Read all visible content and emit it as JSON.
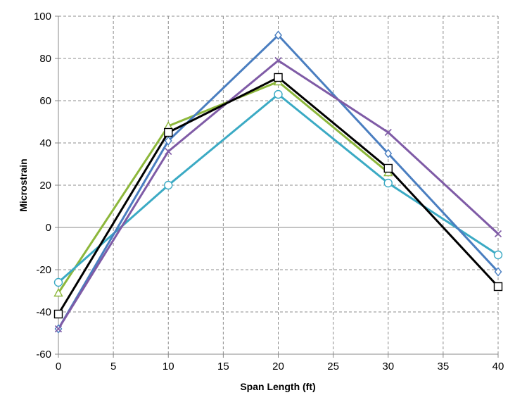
{
  "chart_data": {
    "type": "line",
    "xlabel": "Span Length (ft)",
    "ylabel": "Microstrain",
    "xlim": [
      0,
      40
    ],
    "ylim": [
      -60,
      100
    ],
    "x_ticks": [
      0,
      5,
      10,
      15,
      20,
      25,
      30,
      35,
      40
    ],
    "y_ticks": [
      -60,
      -40,
      -20,
      0,
      20,
      40,
      60,
      80,
      100
    ],
    "x_tick_labels": [
      "0",
      "5",
      "10",
      "15",
      "20",
      "25",
      "30",
      "35",
      "40"
    ],
    "y_tick_labels": [
      "-60",
      "-40",
      "-20",
      "0",
      "20",
      "40",
      "60",
      "80",
      "100"
    ],
    "grid": true,
    "legend": "none",
    "x": [
      0,
      10,
      20,
      30,
      40
    ],
    "series": [
      {
        "values": [
          -31,
          48,
          69,
          26,
          null
        ],
        "color": "#8DB73B",
        "marker": "triangle"
      },
      {
        "values": [
          -26,
          20,
          63,
          21,
          -13
        ],
        "color": "#3BAAC4",
        "marker": "circle"
      },
      {
        "values": [
          -48,
          41,
          91,
          35,
          -21
        ],
        "color": "#4A7EC0",
        "marker": "diamond"
      },
      {
        "values": [
          -48,
          36,
          79,
          45,
          -3
        ],
        "color": "#7F5BA6",
        "marker": "x"
      },
      {
        "values": [
          -41,
          45,
          71,
          28,
          -28
        ],
        "color": "#000000",
        "marker": "square"
      }
    ]
  }
}
